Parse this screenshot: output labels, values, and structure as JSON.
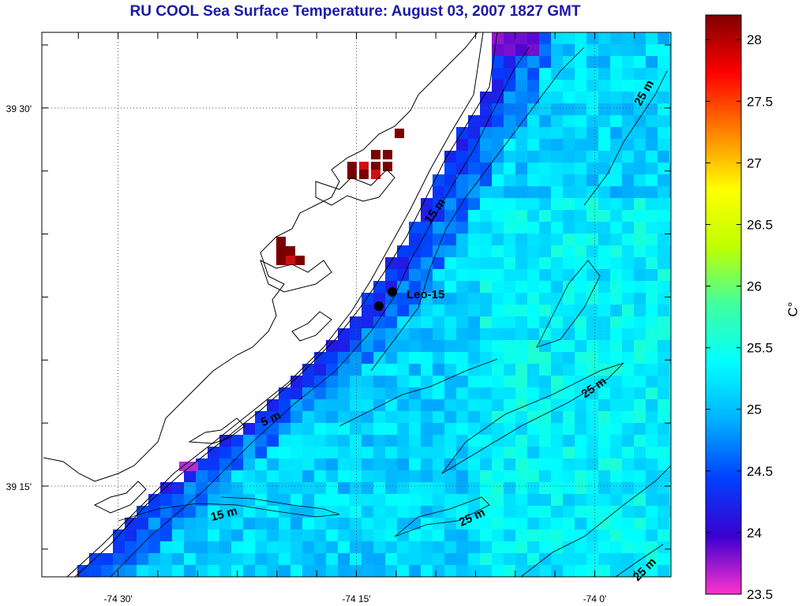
{
  "title": "RU COOL  Sea Surface Temperature:  August 03, 2007 1827 GMT",
  "map": {
    "lon_range": [
      -74.58,
      -73.92
    ],
    "lat_range": [
      39.19,
      39.55
    ],
    "x_ticks": [
      {
        "value": -74.5,
        "label": "-74 30'"
      },
      {
        "value": -74.25,
        "label": "-74 15'"
      },
      {
        "value": -74.0,
        "label": "-74 0'"
      }
    ],
    "y_ticks": [
      {
        "value": 39.5,
        "label": "39 30'"
      },
      {
        "value": 39.25,
        "label": "39 15'"
      }
    ],
    "contour_labels": [
      {
        "text": "25 m",
        "rotation": -60
      },
      {
        "text": "15 m",
        "rotation": -55
      },
      {
        "text": "25 m",
        "rotation": -35
      },
      {
        "text": "5 m",
        "rotation": -25
      },
      {
        "text": "15 m",
        "rotation": -15
      },
      {
        "text": "25 m",
        "rotation": -25
      },
      {
        "text": "25 m",
        "rotation": -45
      }
    ],
    "station": {
      "name": "Leo-15"
    },
    "colors": {
      "land_fill": "#ffffff",
      "coast_stroke": "#000000",
      "background": "#ffffff"
    }
  },
  "colorbar": {
    "unit_label": "C°",
    "min": 23.5,
    "max": 28.2,
    "ticks": [
      "28",
      "27.5",
      "27",
      "26.5",
      "26",
      "25.5",
      "25",
      "24.5",
      "24",
      "23.5"
    ],
    "colors": [
      "#ff33cc",
      "#3a00d0",
      "#0040ff",
      "#00b0ff",
      "#00ffff",
      "#40ffa0",
      "#c0ff00",
      "#ffff00",
      "#ff8000",
      "#ff0000",
      "#800000"
    ]
  }
}
